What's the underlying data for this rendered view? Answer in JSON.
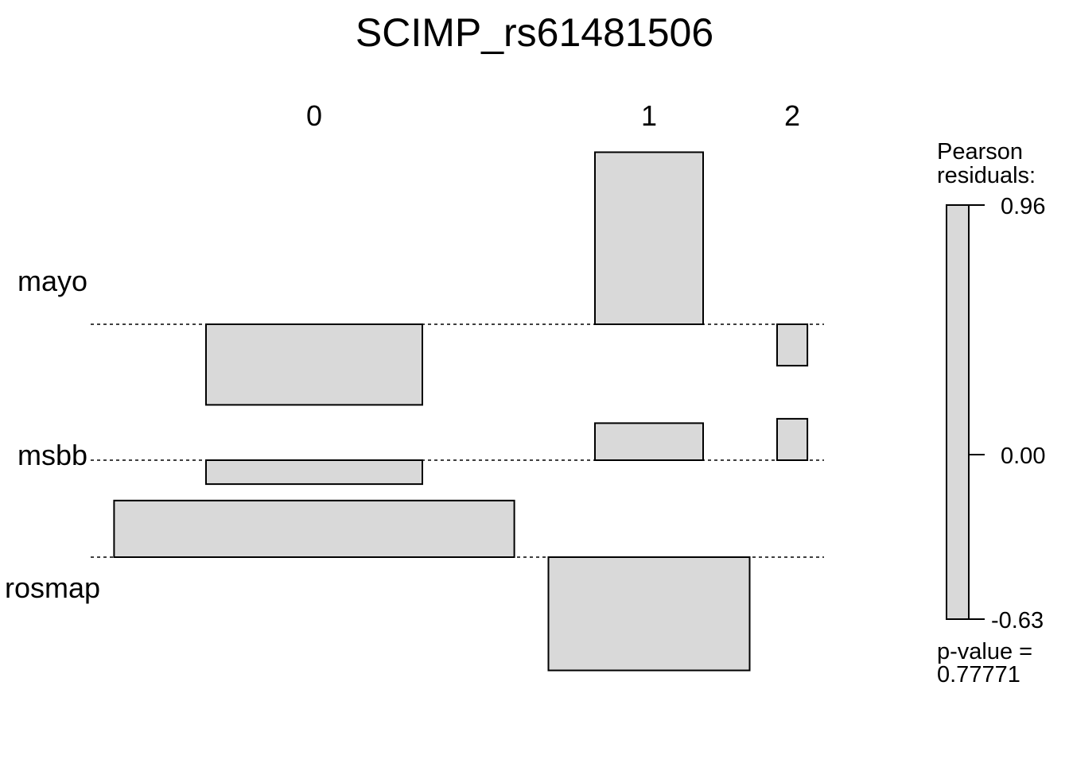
{
  "chart_data": {
    "type": "association",
    "title": "SCIMP_rs61481506",
    "columns": [
      "0",
      "1",
      "2"
    ],
    "rows": [
      "mayo",
      "msbb",
      "rosmap"
    ],
    "residuals": [
      [
        -0.37,
        0.79,
        -0.19
      ],
      [
        -0.11,
        0.17,
        0.19
      ],
      [
        0.26,
        -0.52,
        0.0
      ]
    ],
    "expected_relative": [
      [
        1.0,
        0.5,
        0.14
      ],
      [
        1.0,
        0.5,
        0.14
      ],
      [
        1.85,
        0.93,
        0.27
      ]
    ],
    "legend": {
      "title_line1": "Pearson",
      "title_line2": "residuals:",
      "max": "0.96",
      "mid": "0.00",
      "min": "-0.63",
      "pvalue_line1": "p-value =",
      "pvalue_line2": "0.77771"
    },
    "colors": {
      "fill": "#d9d9d9",
      "stroke": "#000000"
    }
  }
}
